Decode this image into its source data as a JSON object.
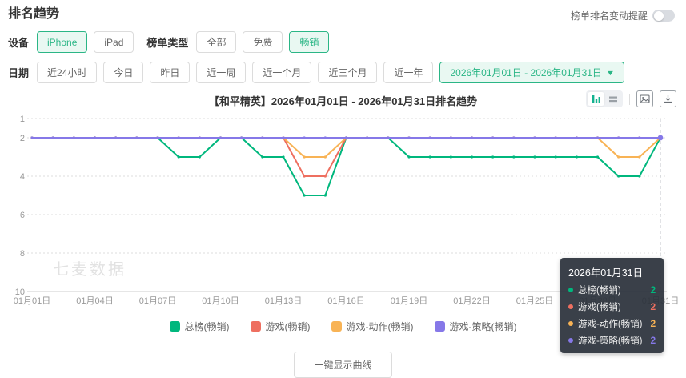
{
  "page": {
    "title": "排名趋势"
  },
  "header": {
    "reminder_label": "榜单排名变动提醒",
    "reminder_toggle_state": "off"
  },
  "filters": {
    "device_label": "设备",
    "device_options": [
      {
        "label": "iPhone",
        "selected": true
      },
      {
        "label": "iPad",
        "selected": false
      }
    ],
    "type_label": "榜单类型",
    "type_options": [
      {
        "label": "全部",
        "selected": false
      },
      {
        "label": "免费",
        "selected": false
      },
      {
        "label": "畅销",
        "selected": true
      }
    ],
    "date_label": "日期",
    "date_options": [
      {
        "label": "近24小时",
        "selected": false
      },
      {
        "label": "今日",
        "selected": false
      },
      {
        "label": "昨日",
        "selected": false
      },
      {
        "label": "近一周",
        "selected": false
      },
      {
        "label": "近一个月",
        "selected": false
      },
      {
        "label": "近三个月",
        "selected": false
      },
      {
        "label": "近一年",
        "selected": false
      }
    ],
    "date_range": "2026年01月01日 - 2026年01月31日",
    "date_range_caret": "▼"
  },
  "chart": {
    "title": "【和平精英】2026年01月01日 - 2026年01月31日排名趋势",
    "watermark": "七麦数据",
    "toolbar_icons": [
      "bar-chart-view",
      "table-view",
      "export-image",
      "download"
    ]
  },
  "chart_data": {
    "type": "line",
    "title": "【和平精英】2026年01月01日 - 2026年01月31日排名趋势",
    "x_unit": "day of 2026-01",
    "x_days": 31,
    "x_ticks": [
      {
        "day": 1,
        "label": "01月01日"
      },
      {
        "day": 4,
        "label": "01月04日"
      },
      {
        "day": 7,
        "label": "01月07日"
      },
      {
        "day": 10,
        "label": "01月10日"
      },
      {
        "day": 13,
        "label": "01月13日"
      },
      {
        "day": 16,
        "label": "01月16日"
      },
      {
        "day": 19,
        "label": "01月19日"
      },
      {
        "day": 22,
        "label": "01月22日"
      },
      {
        "day": 25,
        "label": "01月25日"
      },
      {
        "day": 28,
        "label": "01月28日"
      },
      {
        "day": 31,
        "label": "01月31日"
      }
    ],
    "y_axis": {
      "label": "rank",
      "inverted": true,
      "min": 1,
      "max": 10,
      "ticks": [
        1,
        2,
        4,
        6,
        8,
        10
      ]
    },
    "grid": "horizontal-dotted",
    "legend_position": "bottom",
    "crosshair_day": 31,
    "series": [
      {
        "name": "总榜(畅销)",
        "color": "#00b77d",
        "values": [
          2,
          2,
          2,
          2,
          2,
          2,
          2,
          3,
          3,
          2,
          2,
          3,
          3,
          5,
          5,
          2,
          2,
          2,
          3,
          3,
          3,
          3,
          3,
          3,
          3,
          3,
          3,
          3,
          4,
          4,
          2
        ]
      },
      {
        "name": "游戏(畅销)",
        "color": "#ee6f60",
        "values": [
          2,
          2,
          2,
          2,
          2,
          2,
          2,
          2,
          2,
          2,
          2,
          2,
          2,
          4,
          4,
          2,
          2,
          2,
          2,
          2,
          2,
          2,
          2,
          2,
          2,
          2,
          2,
          2,
          2,
          2,
          2
        ]
      },
      {
        "name": "游戏-动作(畅销)",
        "color": "#f8b355",
        "values": [
          2,
          2,
          2,
          2,
          2,
          2,
          2,
          2,
          2,
          2,
          2,
          2,
          2,
          3,
          3,
          2,
          2,
          2,
          2,
          2,
          2,
          2,
          2,
          2,
          2,
          2,
          2,
          2,
          3,
          3,
          2
        ]
      },
      {
        "name": "游戏-策略(畅销)",
        "color": "#8678e8",
        "values": [
          2,
          2,
          2,
          2,
          2,
          2,
          2,
          2,
          2,
          2,
          2,
          2,
          2,
          2,
          2,
          2,
          2,
          2,
          2,
          2,
          2,
          2,
          2,
          2,
          2,
          2,
          2,
          2,
          2,
          2,
          2
        ]
      }
    ]
  },
  "tooltip": {
    "date": "2026年01月31日",
    "rows": [
      {
        "name": "总榜(畅销)",
        "value": 2,
        "color": "#00b77d"
      },
      {
        "name": "游戏(畅销)",
        "value": 2,
        "color": "#ee6f60"
      },
      {
        "name": "游戏-动作(畅销)",
        "value": 2,
        "color": "#f8b355"
      },
      {
        "name": "游戏-策略(畅销)",
        "value": 2,
        "color": "#8678e8"
      }
    ]
  },
  "footer": {
    "show_curve_label": "一键显示曲线"
  }
}
